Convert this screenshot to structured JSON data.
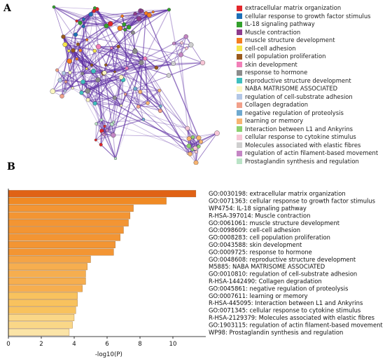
{
  "panels": {
    "a_label": "A",
    "b_label": "B"
  },
  "network_legend": [
    {
      "label": "extracellular matrix organization",
      "color": "#e3262a"
    },
    {
      "label": "cellular response to growth factor stimulus",
      "color": "#1d70b8"
    },
    {
      "label": "IL-18 signaling pathway",
      "color": "#33a02c"
    },
    {
      "label": "Muscle contraction",
      "color": "#8e3b8d"
    },
    {
      "label": "muscle structure development",
      "color": "#f47c20"
    },
    {
      "label": "cell-cell adhesion",
      "color": "#f5e64a"
    },
    {
      "label": "cell population proliferation",
      "color": "#9a5a1d"
    },
    {
      "label": "skin development",
      "color": "#f27fb8"
    },
    {
      "label": "response to hormone",
      "color": "#8c8c8c"
    },
    {
      "label": "reproductive structure development",
      "color": "#3fbfbf"
    },
    {
      "label": "NABA MATRISOME ASSOCIATED",
      "color": "#fbf6c2"
    },
    {
      "label": "regulation of cell-substrate adhesion",
      "color": "#b3c7e6"
    },
    {
      "label": "Collagen degradation",
      "color": "#f2a08a"
    },
    {
      "label": "negative regulation of proteolysis",
      "color": "#6fa9cf"
    },
    {
      "label": "learning or memory",
      "color": "#f7b471"
    },
    {
      "label": "Interaction between L1 and Ankyrins",
      "color": "#8cd070"
    },
    {
      "label": "cellular response to cytokine stimulus",
      "color": "#f7c6d6"
    },
    {
      "label": "Molecules associated with elastic fibres",
      "color": "#cfcfcf"
    },
    {
      "label": "regulation of actin filament-based movement",
      "color": "#c486c4"
    },
    {
      "label": "Prostaglandin synthesis and regulation",
      "color": "#b9e3c6"
    }
  ],
  "chart_data": {
    "type": "bar",
    "orientation": "horizontal",
    "categories": [
      "GO:0030198: extracellular matrix organization",
      "GO:0071363: cellular response to growth factor stimulus",
      "WP4754: IL-18 signaling pathway",
      "R-HSA-397014: Muscle contraction",
      "GO:0061061: muscle structure development",
      "GO:0098609: cell-cell adhesion",
      "GO:0008283: cell population proliferation",
      "GO:0043588: skin development",
      "GO:0009725: response to hormone",
      "GO:0048608: reproductive structure development",
      "M5885: NABA MATRISOME ASSOCIATED",
      "GO:0010810: regulation of cell-substrate adhesion",
      "R-HSA-1442490: Collagen degradation",
      "GO:0045861: negative regulation of proteolysis",
      "GO:0007611: learning or memory",
      "R-HSA-445095: Interaction between L1 and Ankyrins",
      "GO:0071345: cellular response to cytokine stimulus",
      "R-HSA-2129379: Molecules associated with elastic fibres",
      "GO:1903115: regulation of actin filament-based movement",
      "WP98: Prostaglandin synthesis and regulation"
    ],
    "values": [
      11.4,
      9.6,
      7.6,
      7.4,
      7.3,
      7.0,
      6.8,
      6.5,
      6.4,
      5.0,
      4.8,
      4.7,
      4.7,
      4.5,
      4.2,
      4.2,
      4.1,
      4.0,
      3.9,
      3.7
    ],
    "bar_colors": [
      "#e06215",
      "#f08a24",
      "#f39533",
      "#f39533",
      "#f39533",
      "#f39533",
      "#f39533",
      "#f39533",
      "#f39533",
      "#f4a446",
      "#f6ae4f",
      "#f6ae4f",
      "#f6ae4f",
      "#f6ae4f",
      "#f8c25e",
      "#f8c25e",
      "#f8c25e",
      "#fad787",
      "#fad787",
      "#fbe4a7"
    ],
    "xlabel": "-log10(P)",
    "xlim": [
      0,
      12
    ],
    "xticks": [
      0,
      2,
      4,
      6,
      8,
      10
    ]
  }
}
